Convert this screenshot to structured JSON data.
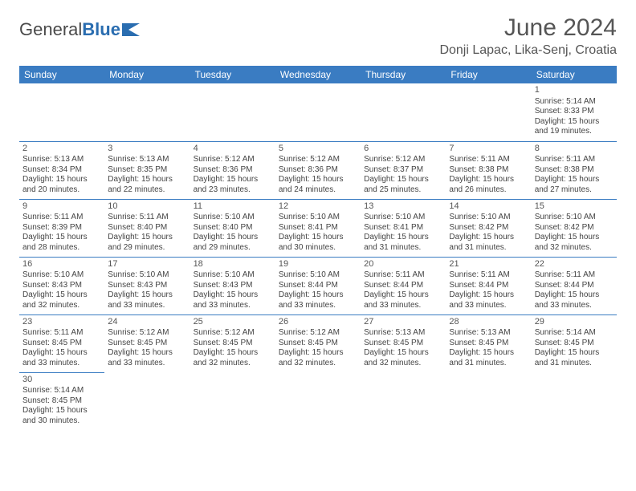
{
  "brand": {
    "part1": "General",
    "part2": "Blue"
  },
  "title": "June 2024",
  "location": "Donji Lapac, Lika-Senj, Croatia",
  "colors": {
    "header_bg": "#3a7cc2",
    "header_text": "#ffffff",
    "cell_border": "#3a7cc2",
    "text": "#444444",
    "title_text": "#555555",
    "logo_gray": "#4a4a4a",
    "logo_blue": "#2a6db0",
    "background": "#ffffff"
  },
  "day_headers": [
    "Sunday",
    "Monday",
    "Tuesday",
    "Wednesday",
    "Thursday",
    "Friday",
    "Saturday"
  ],
  "weeks": [
    [
      null,
      null,
      null,
      null,
      null,
      null,
      {
        "n": "1",
        "sr": "Sunrise: 5:14 AM",
        "ss": "Sunset: 8:33 PM",
        "d1": "Daylight: 15 hours",
        "d2": "and 19 minutes."
      }
    ],
    [
      {
        "n": "2",
        "sr": "Sunrise: 5:13 AM",
        "ss": "Sunset: 8:34 PM",
        "d1": "Daylight: 15 hours",
        "d2": "and 20 minutes."
      },
      {
        "n": "3",
        "sr": "Sunrise: 5:13 AM",
        "ss": "Sunset: 8:35 PM",
        "d1": "Daylight: 15 hours",
        "d2": "and 22 minutes."
      },
      {
        "n": "4",
        "sr": "Sunrise: 5:12 AM",
        "ss": "Sunset: 8:36 PM",
        "d1": "Daylight: 15 hours",
        "d2": "and 23 minutes."
      },
      {
        "n": "5",
        "sr": "Sunrise: 5:12 AM",
        "ss": "Sunset: 8:36 PM",
        "d1": "Daylight: 15 hours",
        "d2": "and 24 minutes."
      },
      {
        "n": "6",
        "sr": "Sunrise: 5:12 AM",
        "ss": "Sunset: 8:37 PM",
        "d1": "Daylight: 15 hours",
        "d2": "and 25 minutes."
      },
      {
        "n": "7",
        "sr": "Sunrise: 5:11 AM",
        "ss": "Sunset: 8:38 PM",
        "d1": "Daylight: 15 hours",
        "d2": "and 26 minutes."
      },
      {
        "n": "8",
        "sr": "Sunrise: 5:11 AM",
        "ss": "Sunset: 8:38 PM",
        "d1": "Daylight: 15 hours",
        "d2": "and 27 minutes."
      }
    ],
    [
      {
        "n": "9",
        "sr": "Sunrise: 5:11 AM",
        "ss": "Sunset: 8:39 PM",
        "d1": "Daylight: 15 hours",
        "d2": "and 28 minutes."
      },
      {
        "n": "10",
        "sr": "Sunrise: 5:11 AM",
        "ss": "Sunset: 8:40 PM",
        "d1": "Daylight: 15 hours",
        "d2": "and 29 minutes."
      },
      {
        "n": "11",
        "sr": "Sunrise: 5:10 AM",
        "ss": "Sunset: 8:40 PM",
        "d1": "Daylight: 15 hours",
        "d2": "and 29 minutes."
      },
      {
        "n": "12",
        "sr": "Sunrise: 5:10 AM",
        "ss": "Sunset: 8:41 PM",
        "d1": "Daylight: 15 hours",
        "d2": "and 30 minutes."
      },
      {
        "n": "13",
        "sr": "Sunrise: 5:10 AM",
        "ss": "Sunset: 8:41 PM",
        "d1": "Daylight: 15 hours",
        "d2": "and 31 minutes."
      },
      {
        "n": "14",
        "sr": "Sunrise: 5:10 AM",
        "ss": "Sunset: 8:42 PM",
        "d1": "Daylight: 15 hours",
        "d2": "and 31 minutes."
      },
      {
        "n": "15",
        "sr": "Sunrise: 5:10 AM",
        "ss": "Sunset: 8:42 PM",
        "d1": "Daylight: 15 hours",
        "d2": "and 32 minutes."
      }
    ],
    [
      {
        "n": "16",
        "sr": "Sunrise: 5:10 AM",
        "ss": "Sunset: 8:43 PM",
        "d1": "Daylight: 15 hours",
        "d2": "and 32 minutes."
      },
      {
        "n": "17",
        "sr": "Sunrise: 5:10 AM",
        "ss": "Sunset: 8:43 PM",
        "d1": "Daylight: 15 hours",
        "d2": "and 33 minutes."
      },
      {
        "n": "18",
        "sr": "Sunrise: 5:10 AM",
        "ss": "Sunset: 8:43 PM",
        "d1": "Daylight: 15 hours",
        "d2": "and 33 minutes."
      },
      {
        "n": "19",
        "sr": "Sunrise: 5:10 AM",
        "ss": "Sunset: 8:44 PM",
        "d1": "Daylight: 15 hours",
        "d2": "and 33 minutes."
      },
      {
        "n": "20",
        "sr": "Sunrise: 5:11 AM",
        "ss": "Sunset: 8:44 PM",
        "d1": "Daylight: 15 hours",
        "d2": "and 33 minutes."
      },
      {
        "n": "21",
        "sr": "Sunrise: 5:11 AM",
        "ss": "Sunset: 8:44 PM",
        "d1": "Daylight: 15 hours",
        "d2": "and 33 minutes."
      },
      {
        "n": "22",
        "sr": "Sunrise: 5:11 AM",
        "ss": "Sunset: 8:44 PM",
        "d1": "Daylight: 15 hours",
        "d2": "and 33 minutes."
      }
    ],
    [
      {
        "n": "23",
        "sr": "Sunrise: 5:11 AM",
        "ss": "Sunset: 8:45 PM",
        "d1": "Daylight: 15 hours",
        "d2": "and 33 minutes."
      },
      {
        "n": "24",
        "sr": "Sunrise: 5:12 AM",
        "ss": "Sunset: 8:45 PM",
        "d1": "Daylight: 15 hours",
        "d2": "and 33 minutes."
      },
      {
        "n": "25",
        "sr": "Sunrise: 5:12 AM",
        "ss": "Sunset: 8:45 PM",
        "d1": "Daylight: 15 hours",
        "d2": "and 32 minutes."
      },
      {
        "n": "26",
        "sr": "Sunrise: 5:12 AM",
        "ss": "Sunset: 8:45 PM",
        "d1": "Daylight: 15 hours",
        "d2": "and 32 minutes."
      },
      {
        "n": "27",
        "sr": "Sunrise: 5:13 AM",
        "ss": "Sunset: 8:45 PM",
        "d1": "Daylight: 15 hours",
        "d2": "and 32 minutes."
      },
      {
        "n": "28",
        "sr": "Sunrise: 5:13 AM",
        "ss": "Sunset: 8:45 PM",
        "d1": "Daylight: 15 hours",
        "d2": "and 31 minutes."
      },
      {
        "n": "29",
        "sr": "Sunrise: 5:14 AM",
        "ss": "Sunset: 8:45 PM",
        "d1": "Daylight: 15 hours",
        "d2": "and 31 minutes."
      }
    ],
    [
      {
        "n": "30",
        "sr": "Sunrise: 5:14 AM",
        "ss": "Sunset: 8:45 PM",
        "d1": "Daylight: 15 hours",
        "d2": "and 30 minutes."
      },
      null,
      null,
      null,
      null,
      null,
      null
    ]
  ]
}
